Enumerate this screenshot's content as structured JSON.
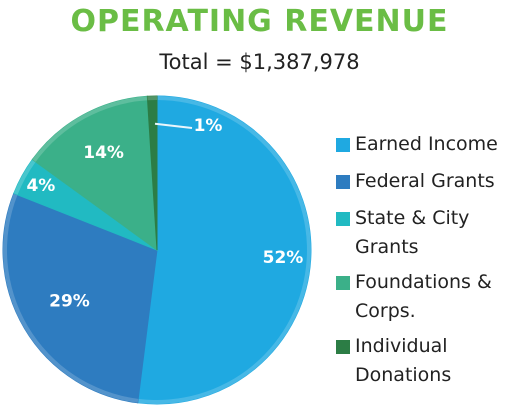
{
  "chart_data": {
    "type": "pie",
    "title": "OPERATING REVENUE",
    "subtitle": "Total = $1,387,978",
    "slices": [
      {
        "name": "Earned Income",
        "value": 52,
        "label": "52%",
        "color": "#1fa9e1"
      },
      {
        "name": "Federal Grants",
        "value": 29,
        "label": "29%",
        "color": "#2e7cc0"
      },
      {
        "name": "State & City Grants",
        "value": 4,
        "label": "4%",
        "color": "#21bac2"
      },
      {
        "name": "Foundations & Corps.",
        "value": 14,
        "label": "14%",
        "color": "#3bb089"
      },
      {
        "name": "Individual Donations",
        "value": 1,
        "label": "1%",
        "color": "#2c7d45"
      }
    ],
    "legend_position": "right"
  },
  "legend": [
    {
      "lines": [
        "Earned Income"
      ],
      "color": "#1fa9e1"
    },
    {
      "lines": [
        "Federal Grants"
      ],
      "color": "#2e7cc0"
    },
    {
      "lines": [
        "State & City",
        "Grants"
      ],
      "color": "#21bac2"
    },
    {
      "lines": [
        "Foundations &",
        "Corps."
      ],
      "color": "#3bb089"
    },
    {
      "lines": [
        "Individual",
        "Donations"
      ],
      "color": "#2c7d45"
    }
  ]
}
